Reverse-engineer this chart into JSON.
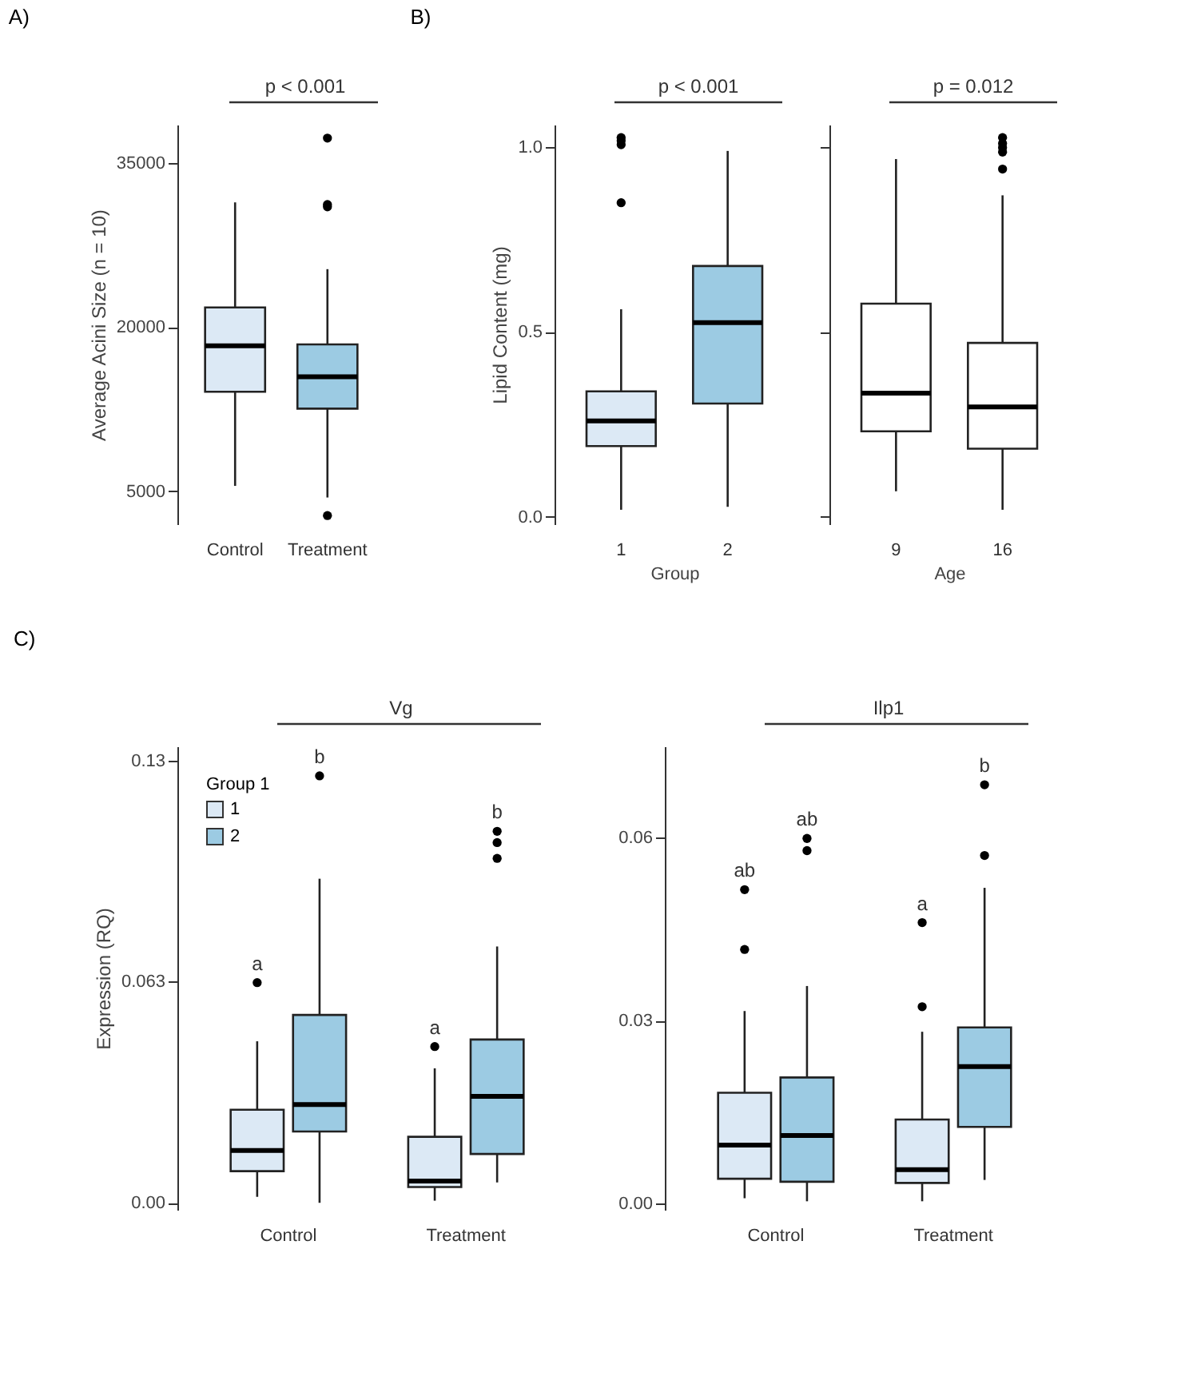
{
  "chart_data": [
    {
      "type": "box",
      "title": "A)",
      "ylabel": "Average Acini Size (n = 10)",
      "categories": [
        "Control",
        "Treatment"
      ],
      "colors": [
        "#dce9f5",
        "#9ccbe3"
      ],
      "boxes": [
        {
          "low": 5500,
          "q1": 14100,
          "median": 18300,
          "q3": 21800,
          "high": 31400
        },
        {
          "low": 4440,
          "q1": 12560,
          "median": 15460,
          "q3": 18420,
          "high": 25300,
          "outliers": [
            37270,
            31200,
            31000,
            2790
          ]
        }
      ],
      "ylim": [
        2000,
        38500
      ],
      "yticks": [
        5000,
        20000,
        35000
      ],
      "grid": false,
      "legend": false,
      "annotations": [
        "p < 0.001"
      ]
    },
    {
      "type": "box",
      "title": "B)",
      "ylabel": "Lipid Content (mg)",
      "xlabel": "Group",
      "categories": [
        "1",
        "2"
      ],
      "colors": [
        "#dce9f5",
        "#9ccbe3"
      ],
      "boxes": [
        {
          "low": 0.019,
          "q1": 0.191,
          "median": 0.259,
          "q3": 0.339,
          "high": 0.561,
          "outliers": [
            1.025,
            1.017,
            1.006,
            0.849
          ]
        },
        {
          "low": 0.027,
          "q1": 0.306,
          "median": 0.525,
          "q3": 0.678,
          "high": 0.989
        }
      ],
      "ylim": [
        -0.02,
        1.06
      ],
      "yticks": [
        {
          "value": 0,
          "label": "0.0"
        },
        {
          "value": 0.5,
          "label": "0.5"
        },
        {
          "value": 1,
          "label": "1.0"
        }
      ],
      "grid": false,
      "legend": false,
      "annotations": [
        "p < 0.001"
      ]
    },
    {
      "type": "box",
      "xlabel": "Age",
      "categories": [
        "9",
        "16"
      ],
      "colors": [
        "#ffffff",
        "#ffffff"
      ],
      "boxes": [
        {
          "low": 0.069,
          "q1": 0.231,
          "median": 0.334,
          "q3": 0.576,
          "high": 0.967
        },
        {
          "low": 0.019,
          "q1": 0.184,
          "median": 0.297,
          "q3": 0.47,
          "high": 0.869,
          "outliers": [
            1.025,
            1.009,
            0.998,
            0.986,
            0.94
          ]
        }
      ],
      "ylim": [
        -0.02,
        1.06
      ],
      "yticks": [
        {
          "value": 0,
          "label": null
        },
        {
          "value": 0.5,
          "label": null
        },
        {
          "value": 1,
          "label": null
        }
      ],
      "tick_labels": "x",
      "grid": false,
      "legend": false,
      "annotations": [
        "p = 0.012"
      ]
    },
    {
      "type": "box",
      "title": "C)",
      "subtitle": "Vg",
      "ylabel": "Expression (RQ)",
      "legend_title": "Group 1",
      "legend": "top left",
      "categories": [
        "Control",
        "Treatment"
      ],
      "series": [
        {
          "name": "1",
          "color": "#dce9f5",
          "boxes": [
            {
              "low": 0.0017,
              "q1": 0.009,
              "median": 0.0149,
              "q3": 0.0265,
              "high": 0.046,
              "outliers": [
                0.0627
              ]
            },
            {
              "low": 0.0006,
              "q1": 0.0045,
              "median": 0.0062,
              "q3": 0.0188,
              "high": 0.0383,
              "outliers": [
                0.0445
              ]
            }
          ]
        },
        {
          "name": "2",
          "color": "#9ccbe3",
          "boxes": [
            {
              "low": 0.0,
              "q1": 0.0203,
              "median": 0.028,
              "q3": 0.0535,
              "high": 0.0923,
              "outliers": [
                0.1216
              ]
            },
            {
              "low": 0.0058,
              "q1": 0.0139,
              "median": 0.0303,
              "q3": 0.0465,
              "high": 0.073,
              "outliers": [
                0.1058,
                0.1026,
                0.0981
              ]
            }
          ]
        }
      ],
      "ylim": [
        -0.002,
        0.13
      ],
      "yticks": [
        {
          "value": 0,
          "label": "0.00"
        },
        {
          "value": 0.063,
          "label": "0.063"
        },
        {
          "value": 0.126,
          "label": "0.13"
        }
      ],
      "grid": false,
      "annotations": [
        "a",
        "b",
        "a",
        "b"
      ]
    },
    {
      "type": "box",
      "subtitle": "Ilp1",
      "categories": [
        "Control",
        "Treatment"
      ],
      "series": [
        {
          "name": "1",
          "color": "#dce9f5",
          "boxes": [
            {
              "low": 0.0009,
              "q1": 0.0041,
              "median": 0.0096,
              "q3": 0.0182,
              "high": 0.0316,
              "outliers": [
                0.0515,
                0.0417
              ]
            },
            {
              "low": 0.0004,
              "q1": 0.0034,
              "median": 0.0056,
              "q3": 0.0138,
              "high": 0.0282,
              "outliers": [
                0.0461,
                0.0323
              ]
            }
          ]
        },
        {
          "name": "2",
          "color": "#9ccbe3",
          "boxes": [
            {
              "low": 0.0004,
              "q1": 0.0036,
              "median": 0.0112,
              "q3": 0.0207,
              "high": 0.0357,
              "outliers": [
                0.0599,
                0.0579
              ]
            },
            {
              "low": 0.0039,
              "q1": 0.0126,
              "median": 0.0225,
              "q3": 0.0289,
              "high": 0.0518,
              "outliers": [
                0.0687,
                0.0571
              ]
            }
          ]
        }
      ],
      "ylim": [
        -0.001,
        0.075
      ],
      "yticks": [
        {
          "value": 0,
          "label": "0.00"
        },
        {
          "value": 0.03,
          "label": "0.03"
        },
        {
          "value": 0.06,
          "label": "0.06"
        }
      ],
      "grid": false,
      "legend": false,
      "annotations": [
        "ab",
        "ab",
        "a",
        "b"
      ]
    }
  ]
}
